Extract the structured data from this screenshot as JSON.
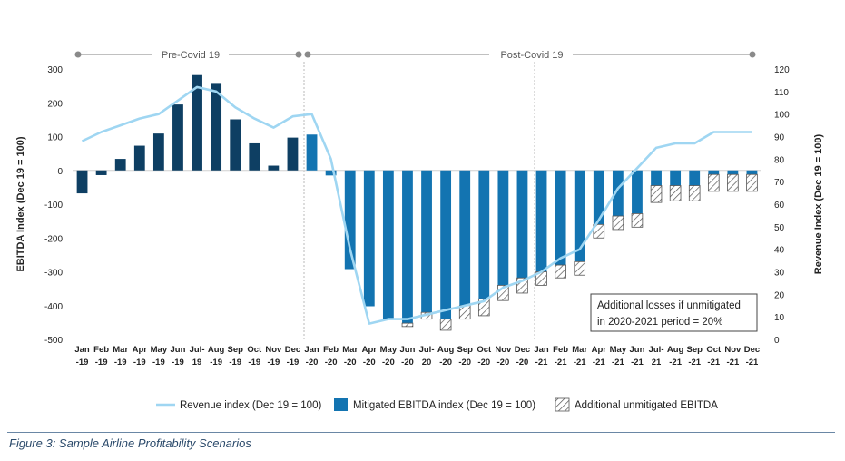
{
  "colors": {
    "pre_covid_bar": "#0e3f63",
    "post_covid_bar": "#1374b1",
    "revenue_line": "#9fd6f2",
    "hatch": "#555555",
    "caption": "#2b4a6b"
  },
  "periods": {
    "pre": "Pre-Covid 19",
    "post": "Post-Covid 19"
  },
  "note": {
    "line1": "Additional losses if unmitigated",
    "line2": "in 2020-2021 period = 20%"
  },
  "caption": "Figure 3: Sample Airline Profitability Scenarios",
  "chart_data": {
    "type": "bar",
    "title": "",
    "xlabel": "",
    "ylabel": "EBITDA Index (Dec 19 = 100)",
    "y2label": "Revenue Index (Dec 19 = 100)",
    "ylim": [
      -500,
      300
    ],
    "y2lim": [
      0,
      120
    ],
    "yticks": [
      "300",
      "200",
      "100",
      "0",
      "-100",
      "-200",
      "-300",
      "-400",
      "-500"
    ],
    "y2ticks": [
      "120",
      "110",
      "100",
      "90",
      "80",
      "70",
      "60",
      "50",
      "40",
      "30",
      "20",
      "10",
      "0"
    ],
    "grid": false,
    "legend_position": "bottom",
    "categories": [
      [
        "Jan",
        "-19"
      ],
      [
        "Feb",
        "-19"
      ],
      [
        "Mar",
        "-19"
      ],
      [
        "Apr",
        "-19"
      ],
      [
        "May",
        "-19"
      ],
      [
        "Jun",
        "-19"
      ],
      [
        "Jul-",
        "19"
      ],
      [
        "Aug",
        "-19"
      ],
      [
        "Sep",
        "-19"
      ],
      [
        "Oct",
        "-19"
      ],
      [
        "Nov",
        "-19"
      ],
      [
        "Dec",
        "-19"
      ],
      [
        "Jan",
        "-20"
      ],
      [
        "Feb",
        "-20"
      ],
      [
        "Mar",
        "-20"
      ],
      [
        "Apr",
        "-20"
      ],
      [
        "May",
        "-20"
      ],
      [
        "Jun",
        "-20"
      ],
      [
        "Jul-",
        "20"
      ],
      [
        "Aug",
        "-20"
      ],
      [
        "Sep",
        "-20"
      ],
      [
        "Oct",
        "-20"
      ],
      [
        "Nov",
        "-20"
      ],
      [
        "Dec",
        "-20"
      ],
      [
        "Jan",
        "-21"
      ],
      [
        "Feb",
        "-21"
      ],
      [
        "Mar",
        "-21"
      ],
      [
        "Apr",
        "-21"
      ],
      [
        "May",
        "-21"
      ],
      [
        "Jun",
        "-21"
      ],
      [
        "Jul-",
        "21"
      ],
      [
        "Aug",
        "-21"
      ],
      [
        "Sep",
        "-21"
      ],
      [
        "Oct",
        "-21"
      ],
      [
        "Nov",
        "-21"
      ],
      [
        "Dec",
        "-21"
      ]
    ],
    "series": [
      {
        "name": "Mitigated EBITDA index (Dec 19 = 100)",
        "type": "bar",
        "axis": "left",
        "values": [
          -68,
          -14,
          34,
          73,
          109,
          195,
          282,
          256,
          151,
          80,
          14,
          97,
          106,
          -15,
          -292,
          -402,
          -441,
          -452,
          -420,
          -440,
          -400,
          -380,
          -340,
          -318,
          -300,
          -280,
          -270,
          -160,
          -135,
          -128,
          -45,
          -45,
          -45,
          -12,
          -12,
          -12
        ]
      },
      {
        "name": "Additional unmitigated EBITDA",
        "type": "hatched-bar",
        "axis": "left",
        "values": [
          0,
          0,
          0,
          0,
          0,
          0,
          0,
          0,
          0,
          0,
          0,
          0,
          0,
          0,
          0,
          0,
          0,
          -10,
          -20,
          -33,
          -40,
          -50,
          -45,
          -45,
          -40,
          -38,
          -40,
          -40,
          -40,
          -40,
          -50,
          -45,
          -45,
          -50,
          -50,
          -50
        ]
      },
      {
        "name": "Revenue index (Dec 19 = 100)",
        "type": "line",
        "axis": "right",
        "values": [
          88,
          92,
          95,
          98,
          100,
          106,
          112,
          110,
          103,
          98,
          94,
          99,
          100,
          80,
          40,
          7,
          9,
          9,
          11,
          13,
          15,
          17,
          23,
          26,
          30,
          36,
          40,
          53,
          67,
          76,
          85,
          87,
          87,
          92,
          92,
          92
        ]
      }
    ],
    "pre_covid_count": 12
  }
}
